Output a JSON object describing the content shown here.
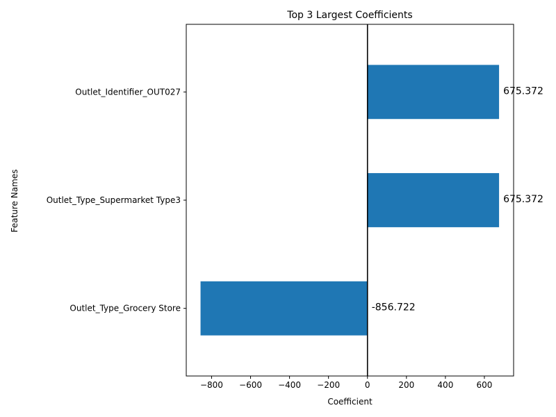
{
  "chart_data": {
    "type": "bar",
    "orientation": "horizontal",
    "title": "Top 3 Largest Coefficients",
    "xlabel": "Coefficient",
    "ylabel": "Feature Names",
    "categories": [
      "Outlet_Type_Grocery Store",
      "Outlet_Type_Supermarket Type3",
      "Outlet_Identifier_OUT027"
    ],
    "values": [
      -856.722,
      675.372,
      675.372
    ],
    "value_labels": [
      "-856.722",
      "675.372",
      "675.372"
    ],
    "xlim": [
      -930,
      750
    ],
    "xticks": [
      -800,
      -600,
      -400,
      -200,
      0,
      200,
      400,
      600
    ],
    "xtick_labels": [
      "−800",
      "−600",
      "−400",
      "−200",
      "0",
      "200",
      "400",
      "600"
    ],
    "zero_line": true,
    "grid": false,
    "bar_color": "#1f77b4"
  }
}
